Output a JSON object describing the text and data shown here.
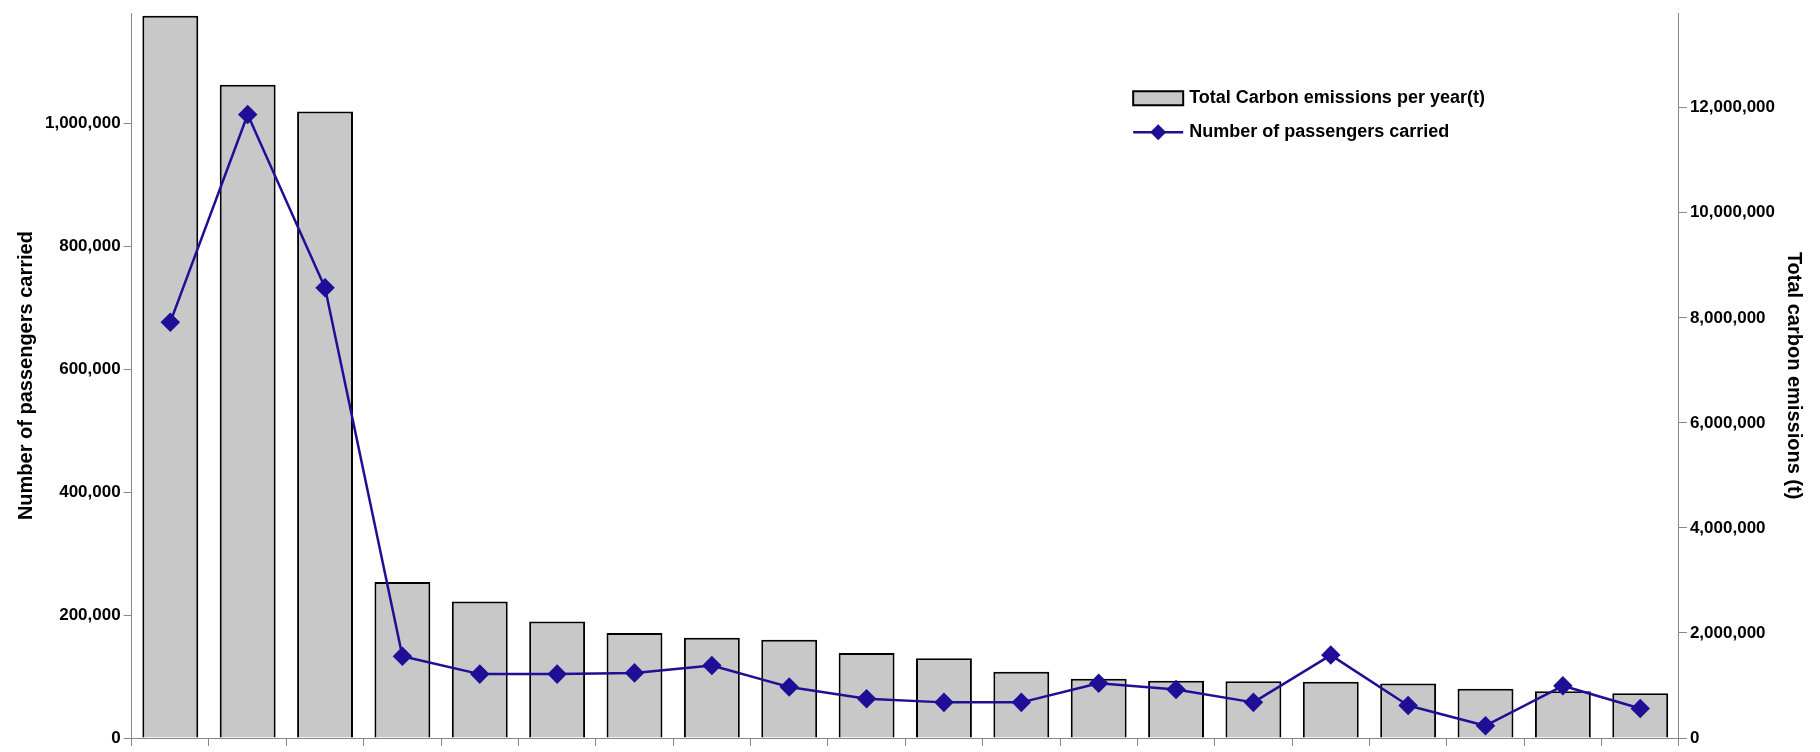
{
  "chart_data": {
    "type": "bar",
    "ylabel": "Number of passengers carried",
    "y2label": "Total carbon emissions (t)",
    "categories": [
      null,
      null,
      null,
      null,
      null,
      null,
      null,
      null,
      null,
      null,
      null,
      null,
      null,
      null,
      null,
      null,
      null,
      null,
      null,
      null
    ],
    "series": [
      {
        "name": "Total Carbon emissions per year(t)",
        "axis": "y2",
        "color": "#c8c8c8",
        "values": [
          13750000,
          12440000,
          11930000,
          2970000,
          2600000,
          2220000,
          2000000,
          1910000,
          1870000,
          1620000,
          1520000,
          1260000,
          1130000,
          1090000,
          1080000,
          1070000,
          1040000,
          940000,
          890000,
          850000
        ]
      },
      {
        "name": "Number of passengers carried",
        "type": "line",
        "color": "#1f0f96",
        "marker": "diamond",
        "values": [
          677000,
          1015000,
          733000,
          133000,
          104000,
          104000,
          106000,
          118000,
          83000,
          64000,
          58000,
          58000,
          89000,
          79000,
          58000,
          135000,
          53000,
          20000,
          85000,
          48000
        ]
      }
    ],
    "ylim": [
      0,
      1180000
    ],
    "yticks": [
      0,
      {
        "value": 200000,
        "label": "200,000"
      },
      {
        "value": 400000,
        "label": "400,000"
      },
      {
        "value": 600000,
        "label": "600,000"
      },
      {
        "value": 800000,
        "label": "800,000"
      },
      {
        "value": 1000000,
        "label": "1,000,000"
      }
    ],
    "y2lim": [
      0,
      13800000
    ],
    "y2ticks": [
      0,
      {
        "value": 2000000,
        "label": "2,000,000"
      },
      {
        "value": 4000000,
        "label": "4,000,000"
      },
      {
        "value": 6000000,
        "label": "6,000,000"
      },
      {
        "value": 8000000,
        "label": "8,000,000"
      },
      {
        "value": 10000000,
        "label": "10,000,000"
      },
      {
        "value": 12000000,
        "label": "12,000,000"
      }
    ],
    "grid": false,
    "legend": "top right"
  }
}
